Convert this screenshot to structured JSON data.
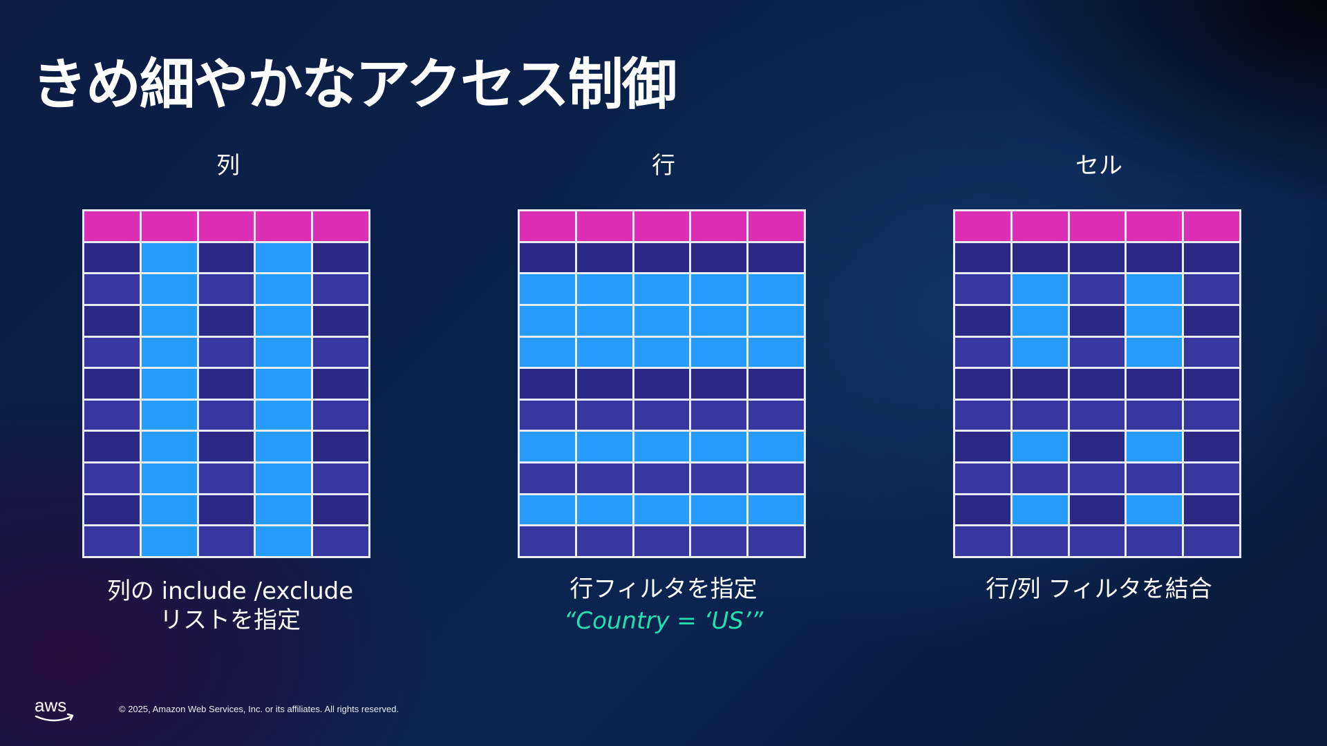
{
  "title": "きめ細やかなアクセス制御",
  "panels": [
    {
      "label": "列",
      "caption_lines": [
        "列の include /exclude",
        "リストを指定"
      ],
      "highlight_rows": [],
      "highlight_cols": [
        1,
        3
      ],
      "highlight_mode": "columns"
    },
    {
      "label": "行",
      "caption_lines": [
        "行フィルタを指定"
      ],
      "filter_expr": "“Country = ‘US’”",
      "highlight_rows": [
        2,
        3,
        4,
        7,
        9
      ],
      "highlight_cols": [],
      "highlight_mode": "rows"
    },
    {
      "label": "セル",
      "caption_lines": [
        "行/列 フィルタを結合"
      ],
      "highlight_rows": [
        2,
        3,
        4,
        7,
        9
      ],
      "highlight_cols": [
        1,
        3
      ],
      "highlight_mode": "cells"
    }
  ],
  "grid": {
    "rows": 11,
    "cols": 5
  },
  "colors": {
    "header": "#dd2fb6",
    "row_dark": "#2a2a86",
    "row_light": "#3737a2",
    "highlight": "#279cff",
    "filter_text": "#24e0b0"
  },
  "footer": {
    "logo_text": "aws",
    "copyright": "© 2025, Amazon Web Services, Inc. or its affiliates. All rights reserved."
  }
}
